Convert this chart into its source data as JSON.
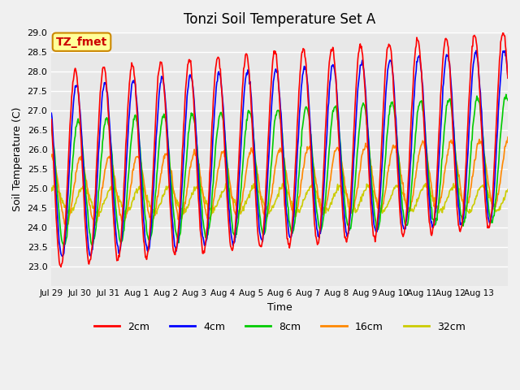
{
  "title": "Tonzi Soil Temperature Set A",
  "xlabel": "Time",
  "ylabel": "Soil Temperature (C)",
  "annotation": "TZ_fmet",
  "ylim": [
    22.5,
    29.0
  ],
  "yticks": [
    23.0,
    23.5,
    24.0,
    24.5,
    25.0,
    25.5,
    26.0,
    26.5,
    27.0,
    27.5,
    28.0,
    28.5,
    29.0
  ],
  "xtick_labels": [
    "Jul 29",
    "Jul 30",
    "Jul 31",
    "Aug 1",
    "Aug 2",
    "Aug 3",
    "Aug 4",
    "Aug 5",
    "Aug 6",
    "Aug 7",
    "Aug 8",
    "Aug 9",
    "Aug 10",
    "Aug 11",
    "Aug 12",
    "Aug 13"
  ],
  "legend_labels": [
    "2cm",
    "4cm",
    "8cm",
    "16cm",
    "32cm"
  ],
  "line_colors": [
    "#ff0000",
    "#0000ff",
    "#00cc00",
    "#ff8800",
    "#cccc00"
  ],
  "background_color": "#e8e8e8",
  "plot_bg_color": "#e8e8e8",
  "grid_color": "#ffffff",
  "annotation_bg": "#ffff99",
  "annotation_border": "#cc8800",
  "annotation_text_color": "#cc0000",
  "n_days": 16,
  "pts_per_day": 48
}
